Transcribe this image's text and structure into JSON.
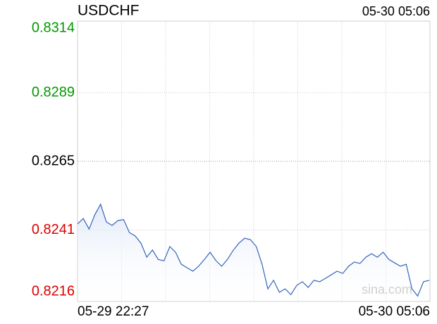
{
  "chart_data": {
    "type": "line",
    "title": "USDCHF",
    "timestamp": "05-30 05:06",
    "x_labels": [
      "05-29 22:27",
      "05-30 05:06"
    ],
    "watermark": "sina.com",
    "ylim": [
      0.8216,
      0.8314
    ],
    "yticks": [
      0.8314,
      0.8289,
      0.8265,
      0.8241,
      0.8216
    ],
    "up_color": "#009900",
    "down_color": "#dd0000",
    "mid_color": "#000000",
    "grid": true,
    "vgrid_divisions": 8,
    "series": [
      {
        "name": "USDCHF",
        "color": "#3366bb",
        "values": [
          0.82431,
          0.8245,
          0.82413,
          0.82463,
          0.825,
          0.82438,
          0.82426,
          0.82443,
          0.82446,
          0.82401,
          0.82389,
          0.82364,
          0.82315,
          0.8234,
          0.82307,
          0.82302,
          0.82352,
          0.82332,
          0.8229,
          0.82278,
          0.82266,
          0.82283,
          0.82307,
          0.82332,
          0.82303,
          0.82283,
          0.82307,
          0.82339,
          0.82364,
          0.82381,
          0.82376,
          0.82352,
          0.8229,
          0.82204,
          0.82234,
          0.82192,
          0.82204,
          0.82184,
          0.82216,
          0.82229,
          0.82209,
          0.82234,
          0.82229,
          0.82241,
          0.82253,
          0.82266,
          0.82258,
          0.82283,
          0.82298,
          0.82293,
          0.82315,
          0.82327,
          0.82315,
          0.82332,
          0.82307,
          0.82295,
          0.82283,
          0.8229,
          0.82204,
          0.82179,
          0.82229,
          0.82234
        ]
      }
    ]
  }
}
